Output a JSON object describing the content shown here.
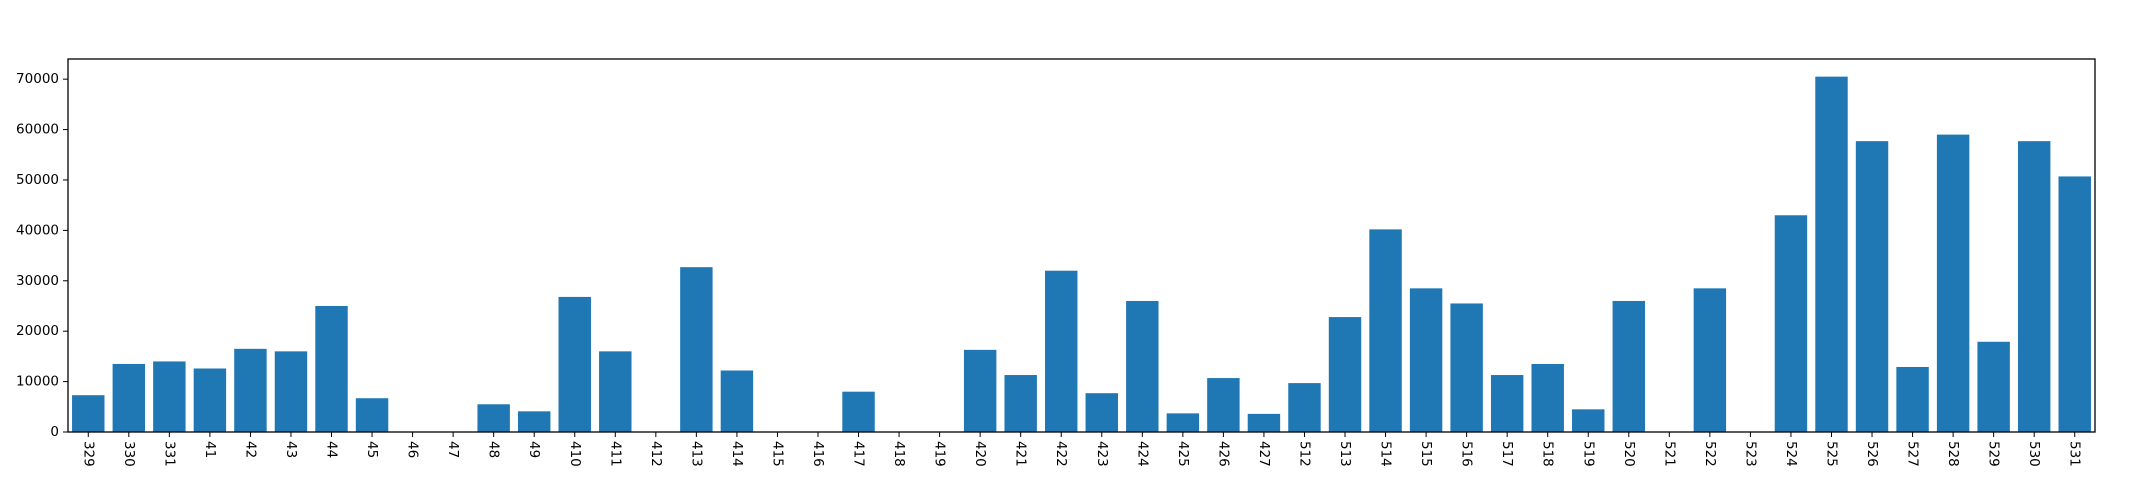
{
  "chart_data": {
    "type": "bar",
    "title": "",
    "xlabel": "",
    "ylabel": "",
    "categories": [
      "329",
      "330",
      "331",
      "41",
      "42",
      "43",
      "44",
      "45",
      "46",
      "47",
      "48",
      "49",
      "410",
      "411",
      "412",
      "413",
      "414",
      "415",
      "416",
      "417",
      "418",
      "419",
      "420",
      "421",
      "422",
      "423",
      "424",
      "425",
      "426",
      "427",
      "512",
      "513",
      "514",
      "515",
      "516",
      "517",
      "518",
      "519",
      "520",
      "521",
      "522",
      "523",
      "524",
      "525",
      "526",
      "527",
      "528",
      "529",
      "530",
      "531"
    ],
    "values": [
      7300,
      13500,
      14000,
      12600,
      16500,
      16000,
      25000,
      6700,
      0,
      0,
      5500,
      4100,
      26800,
      16000,
      0,
      32700,
      12200,
      0,
      0,
      8000,
      0,
      0,
      16300,
      11300,
      32000,
      7700,
      26000,
      3700,
      10700,
      3600,
      9700,
      22800,
      40200,
      28500,
      25500,
      11300,
      13500,
      4500,
      26000,
      0,
      28500,
      0,
      43000,
      70500,
      57700,
      12900,
      59000,
      17900,
      57700,
      50700
    ],
    "ylim": [
      0,
      74000
    ],
    "yticks": [
      0,
      10000,
      20000,
      30000,
      40000,
      50000,
      60000,
      70000
    ],
    "x_tick_rotation": "vertical",
    "grid": false,
    "legend": "none",
    "bar_color": "#1f77b4"
  }
}
